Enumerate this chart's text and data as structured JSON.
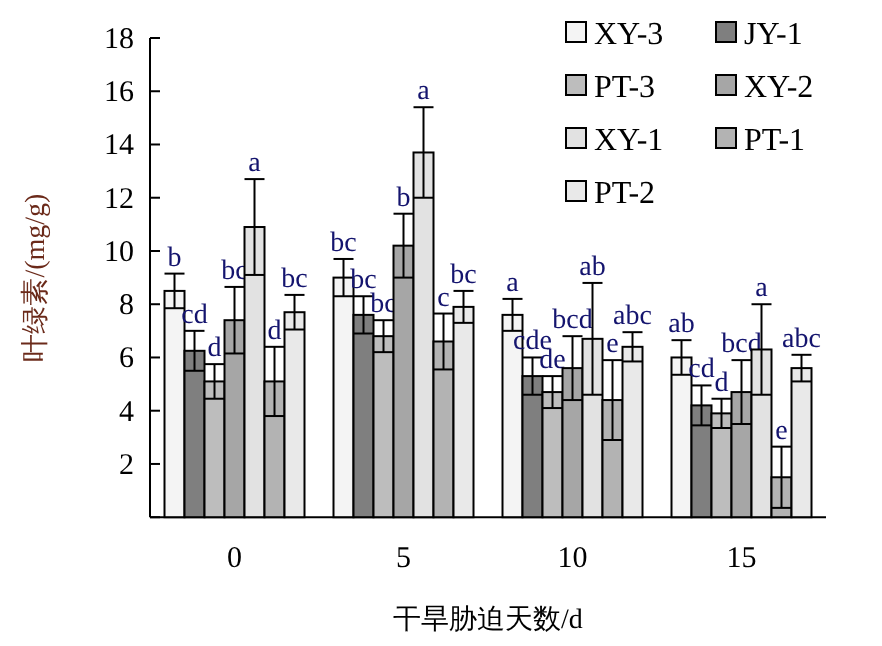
{
  "chart_data": {
    "type": "bar",
    "xlabel": "干旱胁迫天数/d",
    "ylabel": "叶绿素/(mg/g)",
    "categories": [
      "0",
      "5",
      "10",
      "15"
    ],
    "ylim": [
      0,
      18
    ],
    "yticks": [
      {
        "value": 0,
        "label": null
      },
      2,
      4,
      6,
      8,
      10,
      12,
      14,
      16,
      18
    ],
    "legend": "top right",
    "series": [
      {
        "name": "XY-3",
        "color": "#f4f4f4",
        "values": [
          8.5,
          9.0,
          7.6,
          6.0
        ],
        "errors": [
          0.65,
          0.7,
          0.6,
          0.65
        ],
        "value_labels": [
          "b",
          "bc",
          "a",
          "ab"
        ]
      },
      {
        "name": "JY-1",
        "color": "#7f7f7f",
        "values": [
          6.25,
          7.6,
          5.3,
          4.2
        ],
        "errors": [
          0.75,
          0.7,
          0.7,
          0.75
        ],
        "value_labels": [
          "cd",
          "bc",
          "cde",
          "cd"
        ]
      },
      {
        "name": "PT-3",
        "color": "#bdbdbd",
        "values": [
          5.1,
          6.8,
          4.7,
          3.9
        ],
        "errors": [
          0.65,
          0.6,
          0.6,
          0.55
        ],
        "value_labels": [
          "d",
          "bc",
          "de",
          "d"
        ]
      },
      {
        "name": "XY-2",
        "color": "#a6a6a6",
        "values": [
          7.4,
          10.2,
          5.6,
          4.7
        ],
        "errors": [
          1.25,
          1.2,
          1.2,
          1.2
        ],
        "value_labels": [
          "bc",
          "b",
          "bcd",
          "bcd"
        ]
      },
      {
        "name": "XY-1",
        "color": "#e2e2e2",
        "values": [
          10.9,
          13.7,
          6.7,
          6.3
        ],
        "errors": [
          1.8,
          1.7,
          2.1,
          1.7
        ],
        "value_labels": [
          "a",
          "a",
          "ab",
          "a"
        ]
      },
      {
        "name": "PT-1",
        "color": "#b3b3b3",
        "values": [
          5.1,
          6.6,
          4.4,
          1.5
        ],
        "errors": [
          1.3,
          1.05,
          1.5,
          1.15
        ],
        "value_labels": [
          "d",
          "c",
          "e",
          "e"
        ]
      },
      {
        "name": "PT-2",
        "color": "#e9e9e9",
        "values": [
          7.7,
          7.9,
          6.4,
          5.6
        ],
        "errors": [
          0.65,
          0.6,
          0.55,
          0.5
        ],
        "value_labels": [
          "bc",
          "bc",
          "abc",
          "abc"
        ]
      }
    ]
  }
}
